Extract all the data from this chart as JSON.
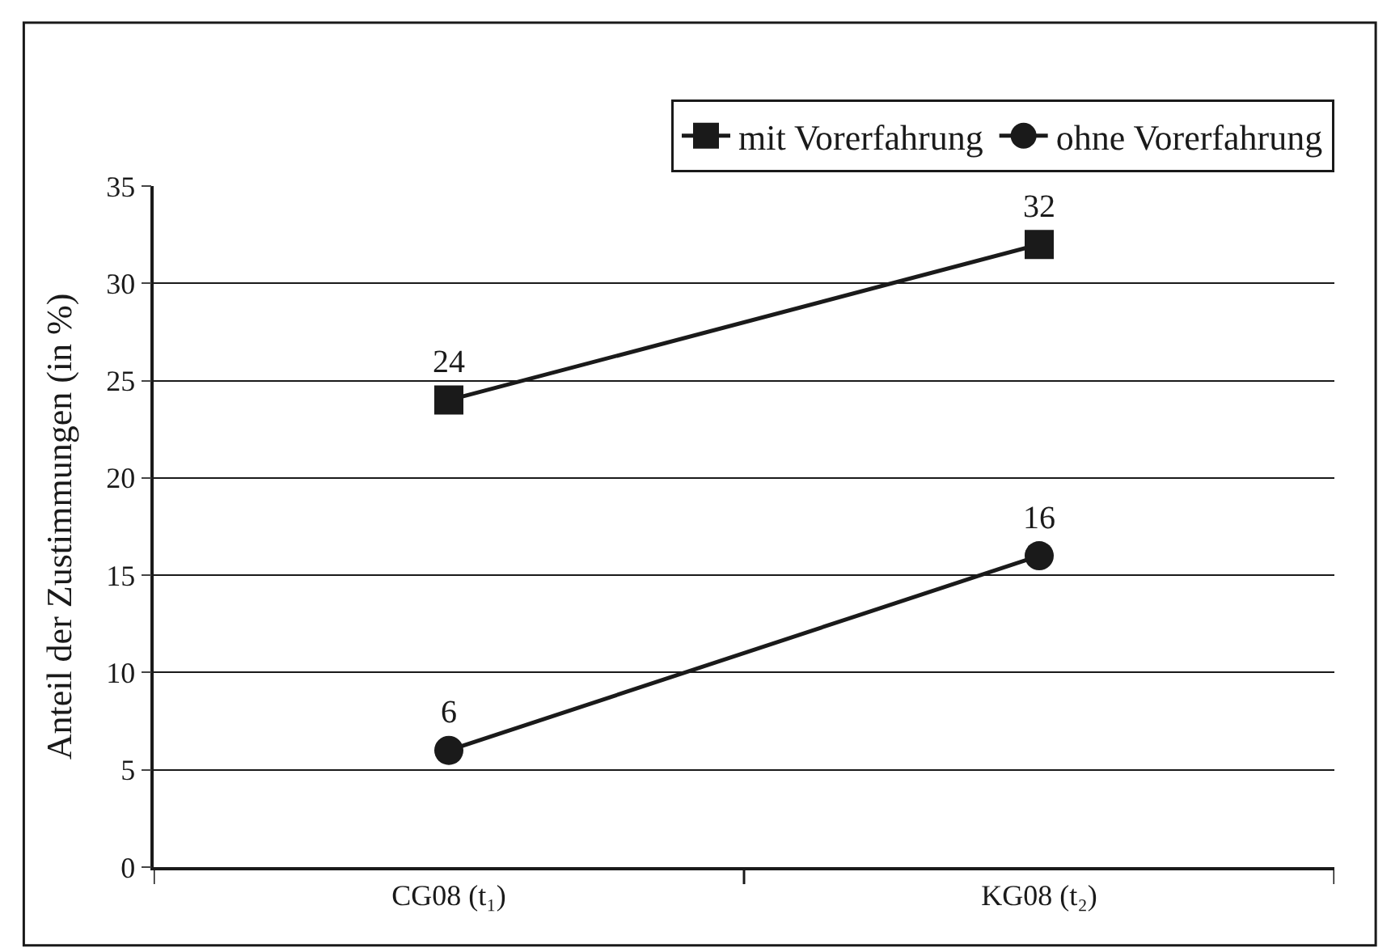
{
  "chart_data": {
    "type": "line",
    "ylabel": "Anteil der Zustimmungen (in %)",
    "categories": [
      "CG08 (t₁)",
      "KG08 (t₂)"
    ],
    "series": [
      {
        "name": "mit Vorerfahrung",
        "color": "#1a1a1a",
        "values": [
          24,
          32
        ],
        "marker": "square"
      },
      {
        "name": "ohne Vorerfahrung",
        "color": "#1a1a1a",
        "values": [
          6,
          16
        ],
        "marker": "circle"
      }
    ],
    "ylim": [
      0,
      35
    ],
    "yticks": [
      0,
      5,
      10,
      15,
      20,
      25,
      30,
      35
    ],
    "grid": "y",
    "legend": "top",
    "data_labels": true,
    "line_style": "solid"
  }
}
